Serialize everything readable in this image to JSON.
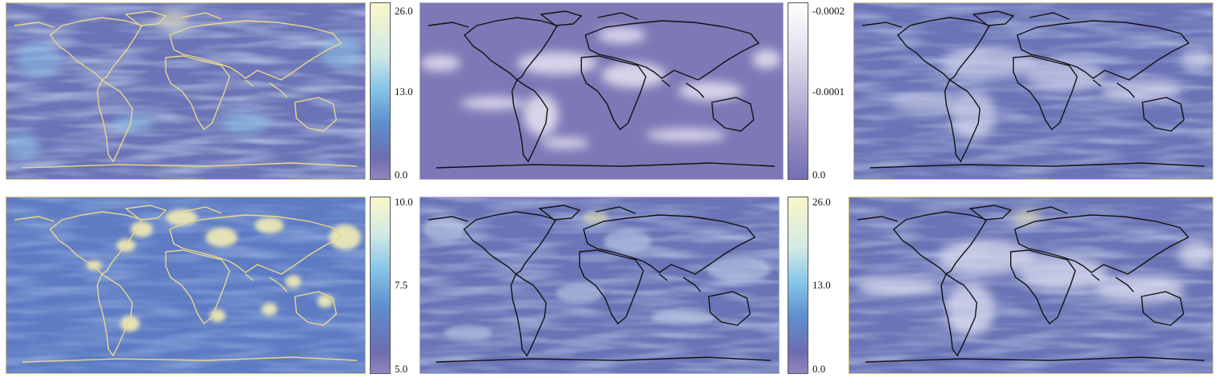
{
  "colors": {
    "map_base": "#6f76b8",
    "flow_light": "#a9d4ee",
    "flow_yellow": "#f3efb8",
    "coast_yellow": "#ead88c",
    "coast_black": "#111111",
    "panel2_base": "#7d7bb5",
    "panel2_highlight": "#eeeaf6"
  },
  "colorbars": [
    {
      "ticks": [
        "26.0",
        "13.0",
        "0.0"
      ],
      "gradient": [
        "#fbf7c8",
        "#cfe8e6",
        "#87c6e8",
        "#5d8fcd",
        "#6f6db0",
        "#8f86bd"
      ]
    },
    {
      "ticks": [
        "-0.0002",
        "-0.0001",
        "0.0"
      ],
      "gradient": [
        "#ffffff",
        "#e6e3f0",
        "#b9b3d6",
        "#8e88c0",
        "#736fb2"
      ]
    },
    {
      "ticks": [
        "10.0",
        "7.5",
        "5.0"
      ],
      "gradient": [
        "#fbf7c8",
        "#cfe8e6",
        "#87c6e8",
        "#5d8fcd",
        "#6f6db0",
        "#8f86bd"
      ]
    },
    {
      "ticks": [
        "26.0",
        "13.0",
        "0.0"
      ],
      "gradient": [
        "#fbf7c8",
        "#cfe8e6",
        "#87c6e8",
        "#5d8fcd",
        "#6f6db0",
        "#8f86bd"
      ]
    }
  ]
}
